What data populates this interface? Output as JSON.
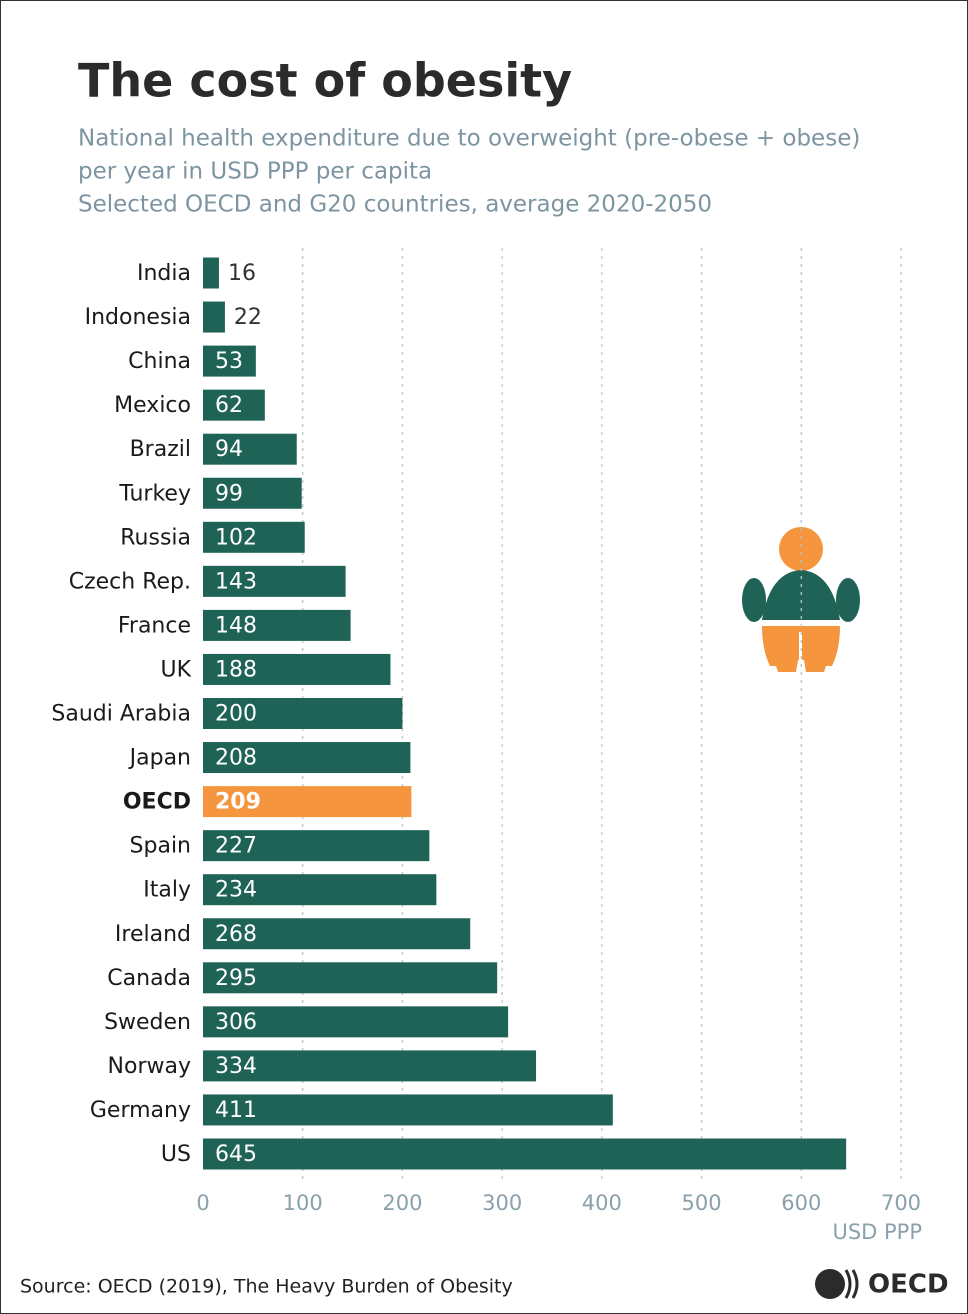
{
  "chart_data": {
    "type": "bar",
    "orientation": "horizontal",
    "title": "The cost of obesity",
    "subtitle": [
      "National health expenditure due to overweight (pre-obese + obese)",
      "per year in USD PPP per capita",
      "Selected OECD and G20 countries, average 2020-2050"
    ],
    "categories": [
      "India",
      "Indonesia",
      "China",
      "Mexico",
      "Brazil",
      "Turkey",
      "Russia",
      "Czech Rep.",
      "France",
      "UK",
      "Saudi Arabia",
      "Japan",
      "OECD",
      "Spain",
      "Italy",
      "Ireland",
      "Canada",
      "Sweden",
      "Norway",
      "Germany",
      "US"
    ],
    "values": [
      16,
      22,
      53,
      62,
      94,
      99,
      102,
      143,
      148,
      188,
      200,
      208,
      209,
      227,
      234,
      268,
      295,
      306,
      334,
      411,
      645
    ],
    "color": "#1e6356",
    "colors": [
      "#1e6356",
      "#1e6356",
      "#1e6356",
      "#1e6356",
      "#1e6356",
      "#1e6356",
      "#1e6356",
      "#1e6356",
      "#1e6356",
      "#1e6356",
      "#1e6356",
      "#1e6356",
      "#f5963e",
      "#1e6356",
      "#1e6356",
      "#1e6356",
      "#1e6356",
      "#1e6356",
      "#1e6356",
      "#1e6356",
      "#1e6356"
    ],
    "xlim": [
      0,
      700
    ],
    "xticks": [
      0,
      100,
      200,
      300,
      400,
      500,
      600,
      700
    ],
    "xlabel": "USD PPP",
    "grid": true,
    "source": "Source: OECD (2019), The Heavy Burden of Obesity",
    "logo": "OECD"
  }
}
